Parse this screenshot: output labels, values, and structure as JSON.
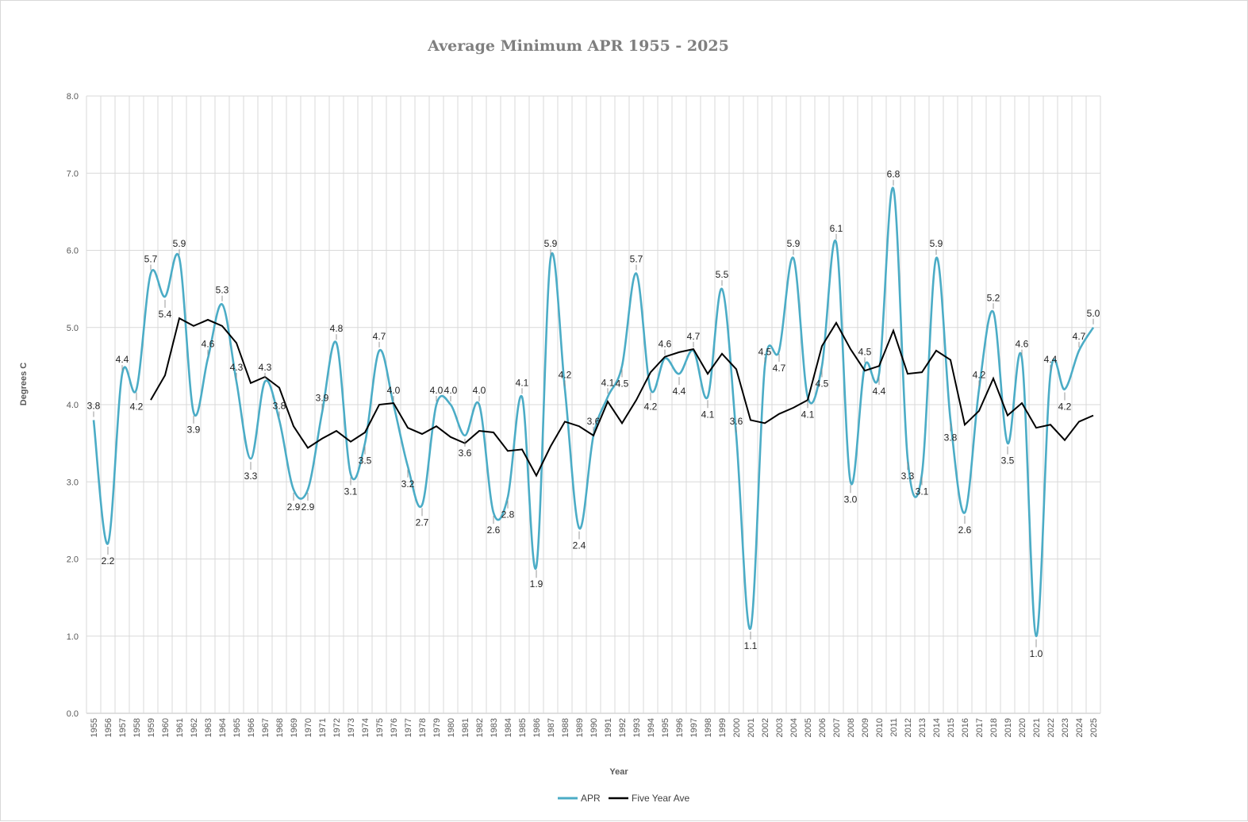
{
  "chart_data": {
    "type": "line",
    "title": "Average Minimum APR 1955 - 2025",
    "xlabel": "Year",
    "ylabel": "Degrees C",
    "ylim": [
      0,
      8
    ],
    "yticks": [
      "0.0",
      "1.0",
      "2.0",
      "3.0",
      "4.0",
      "5.0",
      "6.0",
      "7.0",
      "8.0"
    ],
    "grid": true,
    "legend_position": "bottom",
    "categories": [
      "1955",
      "1956",
      "1957",
      "1958",
      "1959",
      "1960",
      "1961",
      "1962",
      "1963",
      "1964",
      "1965",
      "1966",
      "1967",
      "1968",
      "1969",
      "1970",
      "1971",
      "1972",
      "1973",
      "1974",
      "1975",
      "1976",
      "1977",
      "1978",
      "1979",
      "1980",
      "1981",
      "1982",
      "1983",
      "1984",
      "1985",
      "1986",
      "1987",
      "1988",
      "1989",
      "1990",
      "1991",
      "1992",
      "1993",
      "1994",
      "1995",
      "1996",
      "1997",
      "1998",
      "1999",
      "2000",
      "2001",
      "2002",
      "2003",
      "2004",
      "2005",
      "2006",
      "2007",
      "2008",
      "2009",
      "2010",
      "2011",
      "2012",
      "2013",
      "2014",
      "2015",
      "2016",
      "2017",
      "2018",
      "2019",
      "2020",
      "2021",
      "2022",
      "2023",
      "2024",
      "2025"
    ],
    "series": [
      {
        "name": "APR",
        "color": "#4bacc6",
        "values": [
          3.8,
          2.2,
          4.4,
          4.2,
          5.7,
          5.4,
          5.9,
          3.9,
          4.6,
          5.3,
          4.3,
          3.3,
          4.3,
          3.8,
          2.9,
          2.9,
          3.9,
          4.8,
          3.1,
          3.5,
          4.7,
          4.0,
          3.2,
          2.7,
          4.0,
          4.0,
          3.6,
          4.0,
          2.6,
          2.8,
          4.1,
          1.9,
          5.9,
          4.2,
          2.4,
          3.6,
          4.1,
          4.5,
          5.7,
          4.2,
          4.6,
          4.4,
          4.7,
          4.1,
          5.5,
          3.6,
          1.1,
          4.5,
          4.7,
          5.9,
          4.1,
          4.5,
          6.1,
          3.0,
          4.5,
          4.4,
          6.8,
          3.3,
          3.1,
          5.9,
          3.8,
          2.6,
          4.2,
          5.2,
          3.5,
          4.6,
          1.0,
          4.4,
          4.2,
          4.7,
          5.0
        ],
        "labels": [
          "3.8",
          "2.2",
          "4.4",
          "4.2",
          "5.7",
          "5.4",
          "5.9",
          "3.9",
          "4.6",
          "5.3",
          "4.3",
          "3.3",
          "4.3",
          "3.8",
          "2.9",
          "2.9",
          "3.9",
          "4.8",
          "3.1",
          "3.5",
          "4.7",
          "4.0",
          "3.2",
          "2.7",
          "4.0",
          "4.0",
          "3.6",
          "4.0",
          "2.6",
          "2.8",
          "4.1",
          "1.9",
          "5.9",
          "4.2",
          "2.4",
          "3.6",
          "4.1",
          "4.5",
          "5.7",
          "4.2",
          "4.6",
          "4.4",
          "4.7",
          "4.1",
          "5.5",
          "3.6",
          "1.1",
          "4.5",
          "4.7",
          "5.9",
          "4.1",
          "4.5",
          "6.1",
          "3.0",
          "4.5",
          "4.4",
          "6.8",
          "3.3",
          "3.1",
          "5.9",
          "3.8",
          "2.6",
          "4.2",
          "5.2",
          "3.5",
          "4.6",
          "1.0",
          "4.4",
          "4.2",
          "4.7",
          "5.0"
        ]
      },
      {
        "name": "Five Year Ave",
        "color": "#000000",
        "values": [
          null,
          null,
          null,
          null,
          4.06,
          4.38,
          5.12,
          5.02,
          5.1,
          5.02,
          4.8,
          4.28,
          4.36,
          4.22,
          3.72,
          3.44,
          3.56,
          3.66,
          3.52,
          3.64,
          4.0,
          4.02,
          3.7,
          3.62,
          3.72,
          3.58,
          3.5,
          3.66,
          3.64,
          3.4,
          3.42,
          3.08,
          3.46,
          3.78,
          3.72,
          3.6,
          4.04,
          3.76,
          4.06,
          4.42,
          4.62,
          4.68,
          4.72,
          4.4,
          4.66,
          4.46,
          3.8,
          3.76,
          3.88,
          3.96,
          4.06,
          4.76,
          5.06,
          4.72,
          4.44,
          4.5,
          4.96,
          4.4,
          4.42,
          4.7,
          4.58,
          3.74,
          3.92,
          4.34,
          3.86,
          4.02,
          3.7,
          3.74,
          3.54,
          3.78,
          3.86
        ]
      }
    ]
  }
}
